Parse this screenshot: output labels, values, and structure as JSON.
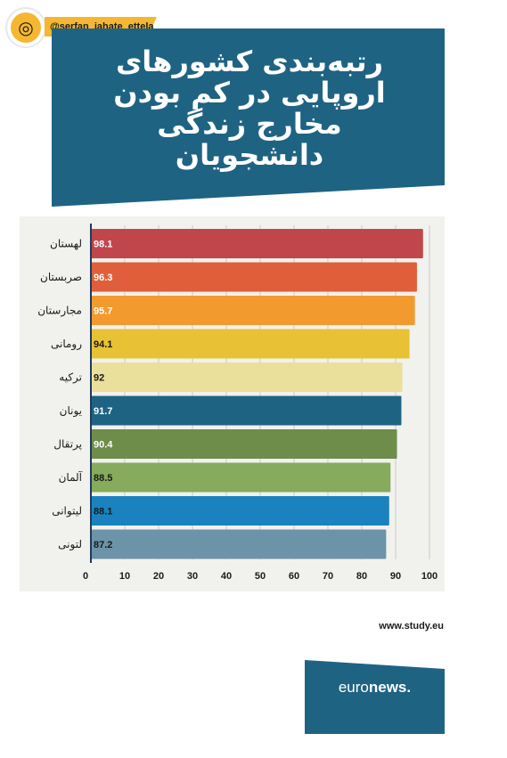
{
  "header": {
    "logo_icon": "circular-seal-logo",
    "handle": "@serfan_jahate_ettela"
  },
  "title_lines": [
    "رتبه‌بندی کشورهای",
    "اروپایی در کم بودن",
    "مخارج زندگی",
    "دانشجویان"
  ],
  "source": "www.study.eu",
  "brand": {
    "prefix": "euro",
    "suffix": "news",
    "dot": "."
  },
  "colors": {
    "banner": "#1f6383",
    "panel": "#f1f1ee",
    "accent": "#f5b731"
  },
  "chart_data": {
    "type": "bar",
    "orientation": "horizontal",
    "title": "رتبه‌بندی کشورهای اروپایی در کم بودن مخارج زندگی دانشجویان",
    "categories": [
      "لهستان",
      "صربستان",
      "مجارستان",
      "رومانی",
      "ترکیه",
      "یونان",
      "پرتقال",
      "آلمان",
      "لیتوانی",
      "لتونی"
    ],
    "values": [
      98.1,
      96.3,
      95.7,
      94.1,
      92,
      91.7,
      90.4,
      88.5,
      88.1,
      87.2
    ],
    "value_labels": [
      "98.1",
      "96.3",
      "95.7",
      "94.1",
      "92",
      "91.7",
      "90.4",
      "88.5",
      "88.1",
      "87.2"
    ],
    "bar_colors": [
      "#c0464c",
      "#e05f3a",
      "#f39a2e",
      "#e8c234",
      "#ebdf9c",
      "#1f6383",
      "#6e8c4a",
      "#86ab5c",
      "#1a82bf",
      "#6c93a8"
    ],
    "value_label_colors": [
      "#ffffff",
      "#ffffff",
      "#ffffff",
      "#1a1a1a",
      "#1a1a1a",
      "#ffffff",
      "#ffffff",
      "#1a1a1a",
      "#1a1a1a",
      "#1a1a1a"
    ],
    "x_ticks": [
      0,
      10,
      20,
      30,
      40,
      50,
      60,
      70,
      80,
      90,
      100
    ],
    "xlim": [
      0,
      100
    ],
    "grid": true,
    "xlabel": "",
    "ylabel": ""
  }
}
